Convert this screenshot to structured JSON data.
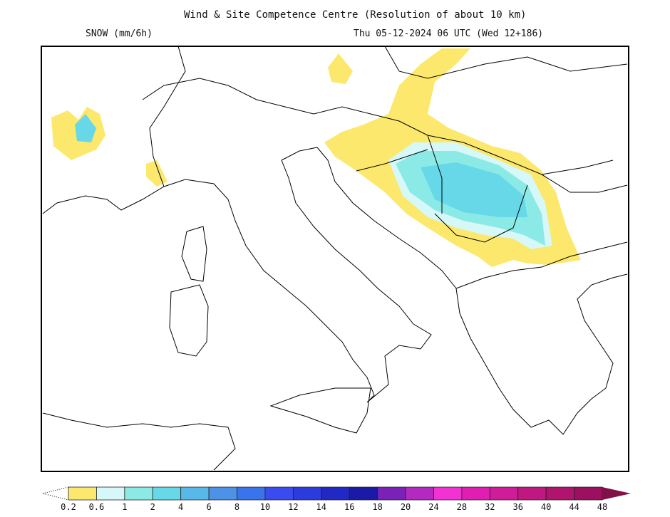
{
  "header": {
    "title": "Wind & Site Competence Centre (Resolution of about 10 km)",
    "parameter": "SNOW (mm/6h)",
    "valid_time": "Thu 05-12-2024 06 UTC (Wed 12+186)"
  },
  "legend": {
    "labels": [
      "0.2",
      "0.6",
      "1",
      "2",
      "4",
      "6",
      "8",
      "10",
      "12",
      "14",
      "16",
      "18",
      "20",
      "24",
      "28",
      "32",
      "36",
      "40",
      "44",
      "48"
    ],
    "colors": [
      "#fce86c",
      "#d6f8f8",
      "#8ceae6",
      "#66d8e8",
      "#58b8e8",
      "#4e92e8",
      "#3a74ec",
      "#3a4cf0",
      "#2c3cdc",
      "#2228c4",
      "#1a1aa6",
      "#7a22b8",
      "#b42ac0",
      "#f232d2",
      "#e01eb2",
      "#d01c98",
      "#c01880",
      "#b0146c",
      "#9c1060"
    ],
    "over_color": "#821048"
  }
}
